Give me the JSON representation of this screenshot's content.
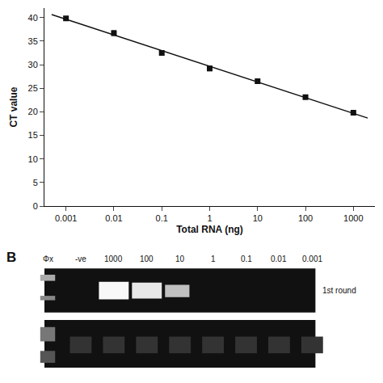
{
  "chart_data": {
    "type": "scatter",
    "xlabel": "Total RNA (ng)",
    "ylabel": "CT value",
    "series": [
      {
        "type": "line",
        "color": "#111111",
        "x": [
          0.00050118723362727,
          1995.2623149688795
        ],
        "values": [
          40.64142857142857,
          18.672857142857143
        ]
      },
      {
        "type": "scatter",
        "marker": "square",
        "color": "#111111",
        "x": [
          0.001,
          0.01,
          0.1,
          1,
          10,
          100,
          1000
        ],
        "values": [
          39.8,
          36.7,
          32.5,
          29.2,
          26.5,
          23.1,
          19.8
        ],
        "errors": [
          0.3,
          0.5,
          0.4,
          0.5,
          0.4,
          0.3,
          0.2
        ]
      }
    ],
    "log": "x",
    "xlim": [
      0.00035481338923357,
      2818.382931264454
    ],
    "xticks": [
      0.001,
      0.01,
      0.1,
      1,
      10,
      100,
      1000
    ],
    "ylim": [
      0,
      42
    ],
    "yticks": [
      0,
      5,
      10,
      15,
      20,
      25,
      30,
      35,
      40
    ],
    "grid": false,
    "annotations": [
      "B",
      "Φx",
      "-ve",
      "1000",
      "100",
      "10",
      "1",
      "0.1",
      "0.01",
      "0.001",
      "1st round"
    ]
  }
}
